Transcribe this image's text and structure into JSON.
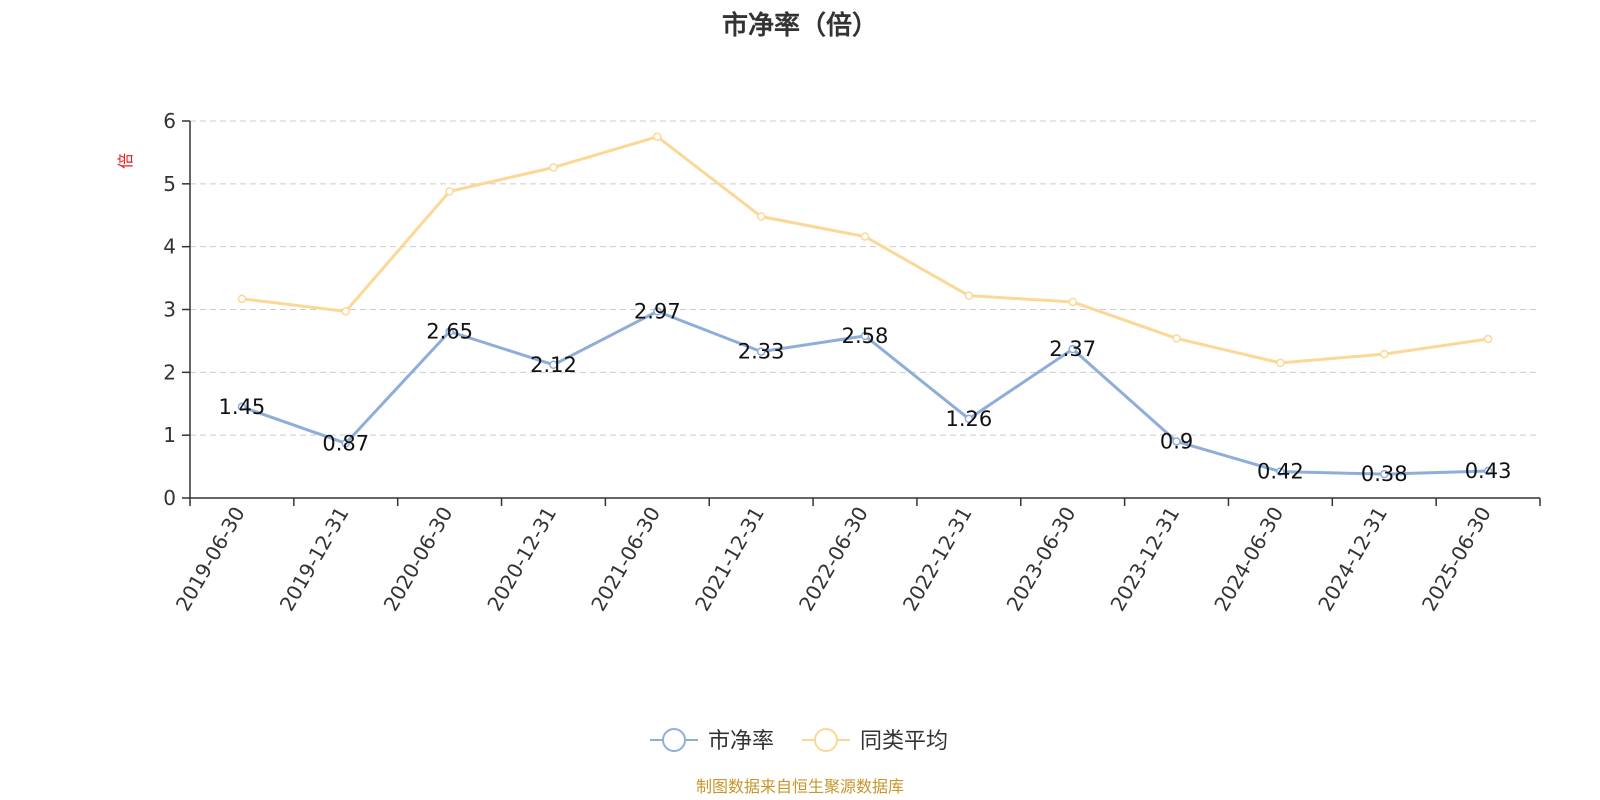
{
  "chart_data": {
    "type": "line",
    "title": "市净率（倍）",
    "unit_label": "倍",
    "ylim": [
      0,
      6
    ],
    "yticks": [
      "0",
      "1",
      "2",
      "3",
      "4",
      "5",
      "6"
    ],
    "grid": true,
    "legend_position": "bottom",
    "categories": [
      "2019-06-30",
      "2019-12-31",
      "2020-06-30",
      "2020-12-31",
      "2021-06-30",
      "2021-12-31",
      "2022-06-30",
      "2022-12-31",
      "2023-06-30",
      "2023-12-31",
      "2024-06-30",
      "2024-12-31",
      "2025-06-30"
    ],
    "series": [
      {
        "name": "市净率",
        "color": "#8eaed9",
        "values": [
          1.45,
          0.87,
          2.65,
          2.12,
          2.97,
          2.33,
          2.58,
          1.26,
          2.37,
          0.9,
          0.42,
          0.38,
          0.43
        ],
        "labels": [
          "1.45",
          "0.87",
          "2.65",
          "2.12",
          "2.97",
          "2.33",
          "2.58",
          "1.26",
          "2.37",
          "0.9",
          "0.42",
          "0.38",
          "0.43"
        ]
      },
      {
        "name": "同类平均",
        "color": "#fbd896",
        "values": [
          3.17,
          2.97,
          4.88,
          5.26,
          5.75,
          4.48,
          4.16,
          3.22,
          3.12,
          2.54,
          2.15,
          2.29,
          2.53
        ]
      }
    ]
  },
  "source_note": "制图数据来自恒生聚源数据库",
  "colors": {
    "unit_label": "#e02020",
    "source_note": "#c8962a",
    "axis": "#333333",
    "grid": "#cccccc"
  }
}
